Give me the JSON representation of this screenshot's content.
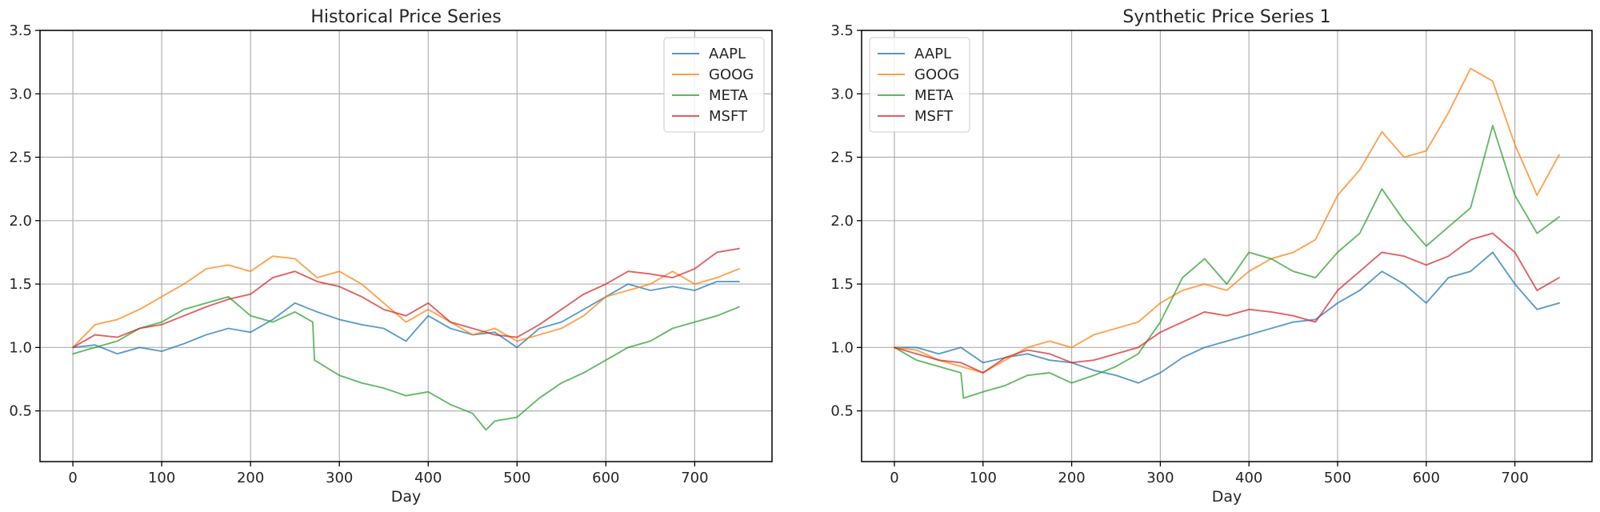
{
  "colors": {
    "AAPL": "#1f77b4",
    "GOOG": "#ff7f0e",
    "META": "#2ca02c",
    "MSFT": "#d62728",
    "grid": "#b0b0b0"
  },
  "chart_data": [
    {
      "type": "line",
      "title": "Historical Price Series",
      "xlabel": "Day",
      "ylabel": "",
      "xlim": [
        -37,
        787
      ],
      "ylim": [
        0.1,
        3.5
      ],
      "xticks": [
        0,
        100,
        200,
        300,
        400,
        500,
        600,
        700
      ],
      "yticks": [
        0.5,
        1.0,
        1.5,
        2.0,
        2.5,
        3.0,
        3.5
      ],
      "grid": true,
      "legend": "top-right",
      "series": [
        {
          "name": "AAPL",
          "x": [
            0,
            25,
            50,
            75,
            100,
            125,
            150,
            175,
            200,
            225,
            250,
            275,
            300,
            325,
            350,
            375,
            400,
            425,
            450,
            475,
            500,
            525,
            550,
            575,
            600,
            625,
            650,
            675,
            700,
            725,
            750
          ],
          "values": [
            1.0,
            1.02,
            0.95,
            1.0,
            0.97,
            1.03,
            1.1,
            1.15,
            1.12,
            1.22,
            1.35,
            1.28,
            1.22,
            1.18,
            1.15,
            1.05,
            1.25,
            1.15,
            1.1,
            1.12,
            1.0,
            1.15,
            1.2,
            1.3,
            1.4,
            1.5,
            1.45,
            1.48,
            1.45,
            1.52,
            1.52
          ]
        },
        {
          "name": "GOOG",
          "x": [
            0,
            25,
            50,
            75,
            100,
            125,
            150,
            175,
            200,
            225,
            250,
            275,
            300,
            325,
            350,
            375,
            400,
            425,
            450,
            475,
            500,
            525,
            550,
            575,
            600,
            625,
            650,
            675,
            700,
            725,
            750
          ],
          "values": [
            1.0,
            1.18,
            1.22,
            1.3,
            1.4,
            1.5,
            1.62,
            1.65,
            1.6,
            1.72,
            1.7,
            1.55,
            1.6,
            1.5,
            1.35,
            1.2,
            1.3,
            1.2,
            1.1,
            1.15,
            1.05,
            1.1,
            1.15,
            1.25,
            1.4,
            1.45,
            1.5,
            1.6,
            1.5,
            1.55,
            1.62
          ]
        },
        {
          "name": "META",
          "x": [
            0,
            25,
            50,
            75,
            100,
            125,
            150,
            175,
            200,
            225,
            250,
            270,
            272,
            300,
            325,
            350,
            375,
            400,
            425,
            450,
            465,
            475,
            500,
            525,
            550,
            575,
            600,
            625,
            650,
            675,
            700,
            725,
            750
          ],
          "values": [
            0.95,
            1.0,
            1.05,
            1.15,
            1.2,
            1.3,
            1.35,
            1.4,
            1.25,
            1.2,
            1.28,
            1.2,
            0.9,
            0.78,
            0.72,
            0.68,
            0.62,
            0.65,
            0.55,
            0.48,
            0.35,
            0.42,
            0.45,
            0.6,
            0.72,
            0.8,
            0.9,
            1.0,
            1.05,
            1.15,
            1.2,
            1.25,
            1.32
          ]
        },
        {
          "name": "MSFT",
          "x": [
            0,
            25,
            50,
            75,
            100,
            125,
            150,
            175,
            200,
            225,
            250,
            275,
            300,
            325,
            350,
            375,
            400,
            425,
            450,
            475,
            500,
            525,
            550,
            575,
            600,
            625,
            650,
            675,
            700,
            725,
            750
          ],
          "values": [
            1.0,
            1.1,
            1.08,
            1.15,
            1.18,
            1.25,
            1.32,
            1.38,
            1.42,
            1.55,
            1.6,
            1.52,
            1.48,
            1.4,
            1.3,
            1.25,
            1.35,
            1.2,
            1.15,
            1.1,
            1.08,
            1.18,
            1.3,
            1.42,
            1.5,
            1.6,
            1.58,
            1.55,
            1.62,
            1.75,
            1.78
          ]
        }
      ]
    },
    {
      "type": "line",
      "title": "Synthetic Price Series 1",
      "xlabel": "Day",
      "ylabel": "",
      "xlim": [
        -37,
        787
      ],
      "ylim": [
        0.1,
        3.5
      ],
      "xticks": [
        0,
        100,
        200,
        300,
        400,
        500,
        600,
        700
      ],
      "yticks": [
        0.5,
        1.0,
        1.5,
        2.0,
        2.5,
        3.0,
        3.5
      ],
      "grid": true,
      "legend": "top-left",
      "series": [
        {
          "name": "AAPL",
          "x": [
            0,
            25,
            50,
            75,
            100,
            125,
            150,
            175,
            200,
            225,
            250,
            275,
            300,
            325,
            350,
            375,
            400,
            425,
            450,
            475,
            500,
            525,
            550,
            575,
            600,
            625,
            650,
            675,
            700,
            725,
            750
          ],
          "values": [
            1.0,
            1.0,
            0.95,
            1.0,
            0.88,
            0.92,
            0.95,
            0.9,
            0.88,
            0.82,
            0.78,
            0.72,
            0.8,
            0.92,
            1.0,
            1.05,
            1.1,
            1.15,
            1.2,
            1.22,
            1.35,
            1.45,
            1.6,
            1.5,
            1.35,
            1.55,
            1.6,
            1.75,
            1.5,
            1.3,
            1.35
          ]
        },
        {
          "name": "GOOG",
          "x": [
            0,
            25,
            50,
            75,
            100,
            125,
            150,
            175,
            200,
            225,
            250,
            275,
            300,
            325,
            350,
            375,
            400,
            425,
            450,
            475,
            500,
            525,
            550,
            575,
            600,
            625,
            650,
            675,
            700,
            725,
            750
          ],
          "values": [
            1.0,
            0.98,
            0.9,
            0.85,
            0.8,
            0.9,
            1.0,
            1.05,
            1.0,
            1.1,
            1.15,
            1.2,
            1.35,
            1.45,
            1.5,
            1.45,
            1.6,
            1.7,
            1.75,
            1.85,
            2.2,
            2.4,
            2.7,
            2.5,
            2.55,
            2.85,
            3.2,
            3.1,
            2.6,
            2.2,
            2.52
          ]
        },
        {
          "name": "META",
          "x": [
            0,
            25,
            50,
            75,
            78,
            100,
            125,
            150,
            175,
            200,
            225,
            250,
            275,
            300,
            325,
            350,
            375,
            400,
            425,
            450,
            475,
            500,
            525,
            550,
            575,
            600,
            625,
            650,
            675,
            700,
            725,
            750
          ],
          "values": [
            1.0,
            0.9,
            0.85,
            0.8,
            0.6,
            0.65,
            0.7,
            0.78,
            0.8,
            0.72,
            0.78,
            0.85,
            0.95,
            1.2,
            1.55,
            1.7,
            1.5,
            1.75,
            1.7,
            1.6,
            1.55,
            1.75,
            1.9,
            2.25,
            2.0,
            1.8,
            1.95,
            2.1,
            2.75,
            2.2,
            1.9,
            2.03
          ]
        },
        {
          "name": "MSFT",
          "x": [
            0,
            25,
            50,
            75,
            100,
            125,
            150,
            175,
            200,
            225,
            250,
            275,
            300,
            325,
            350,
            375,
            400,
            425,
            450,
            475,
            500,
            525,
            550,
            575,
            600,
            625,
            650,
            675,
            700,
            725,
            750
          ],
          "values": [
            1.0,
            0.95,
            0.9,
            0.88,
            0.8,
            0.92,
            0.98,
            0.95,
            0.88,
            0.9,
            0.95,
            1.0,
            1.12,
            1.2,
            1.28,
            1.25,
            1.3,
            1.28,
            1.25,
            1.2,
            1.45,
            1.6,
            1.75,
            1.72,
            1.65,
            1.72,
            1.85,
            1.9,
            1.75,
            1.45,
            1.55
          ]
        }
      ]
    }
  ]
}
